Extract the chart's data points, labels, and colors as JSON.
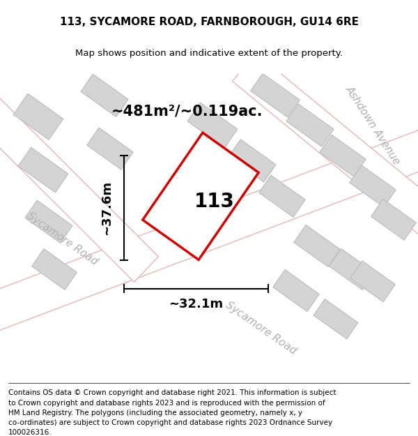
{
  "title": "113, SYCAMORE ROAD, FARNBOROUGH, GU14 6RE",
  "subtitle": "Map shows position and indicative extent of the property.",
  "footer_lines": [
    "Contains OS data © Crown copyright and database right 2021. This information is subject",
    "to Crown copyright and database rights 2023 and is reproduced with the permission of",
    "HM Land Registry. The polygons (including the associated geometry, namely x, y",
    "co-ordinates) are subject to Crown copyright and database rights 2023 Ordnance Survey",
    "100026316."
  ],
  "area_label": "~481m²/~0.119ac.",
  "width_label": "~32.1m",
  "height_label": "~37.6m",
  "plot_number": "113",
  "map_bg": "#eef0eb",
  "road_fill": "#ffffff",
  "road_edge": "#e0b8b8",
  "building_fill": "#d4d4d4",
  "building_edge": "#bbbbbb",
  "plot_color": "#cc0000",
  "title_fontsize": 11,
  "subtitle_fontsize": 9.5,
  "footer_fontsize": 7.5,
  "label_fontsize": 13,
  "number_fontsize": 20,
  "road_label_color": "#b0b0b0"
}
